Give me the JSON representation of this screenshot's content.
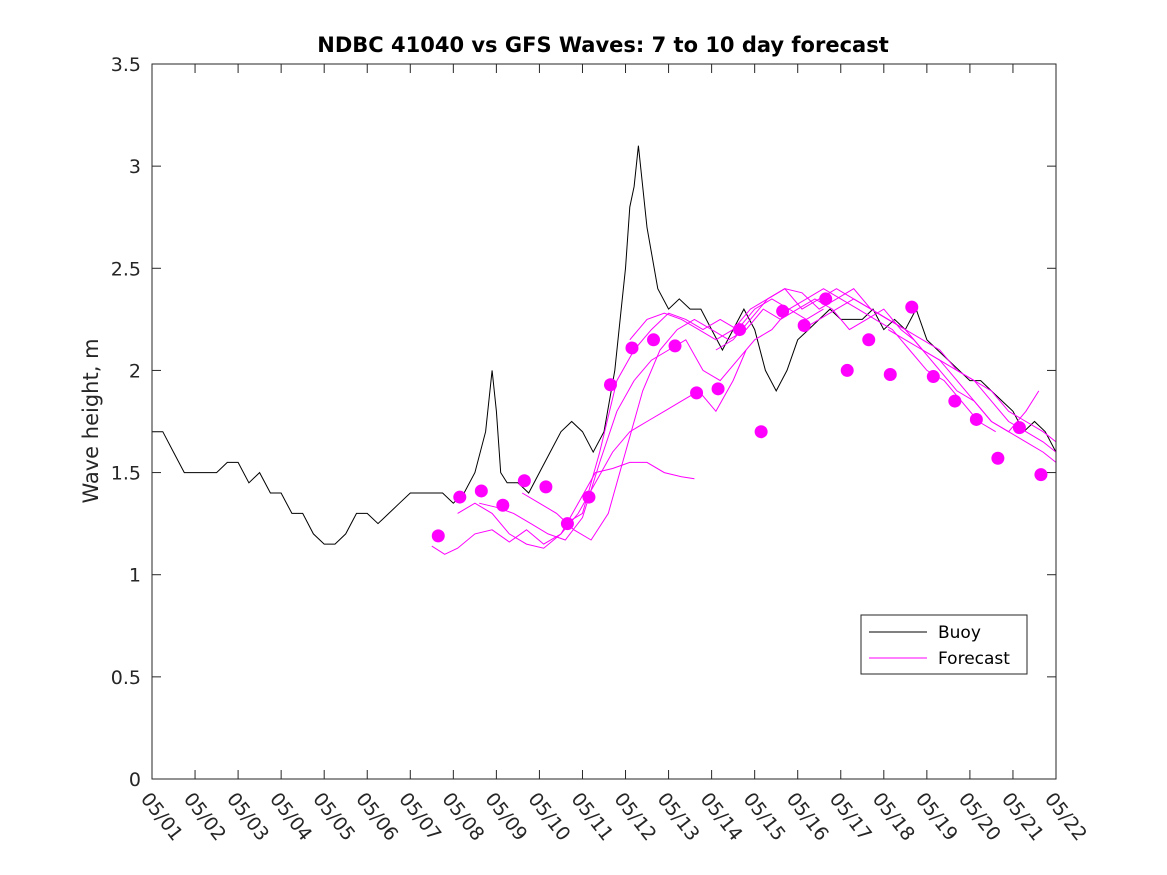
{
  "chart_data": {
    "type": "line",
    "title": "NDBC 41040 vs GFS Waves: 7 to 10 day forecast",
    "xlabel": "",
    "ylabel": "Wave height, m",
    "x_unit": "date (May)",
    "xlim": [
      "05/01",
      "05/22"
    ],
    "ylim": [
      0,
      3.5
    ],
    "yticks": [
      "0",
      "0.5",
      "1",
      "1.5",
      "2",
      "2.5",
      "3",
      "3.5"
    ],
    "xticks": [
      "05/01",
      "05/02",
      "05/03",
      "05/04",
      "05/05",
      "05/06",
      "05/07",
      "05/08",
      "05/09",
      "05/10",
      "05/11",
      "05/12",
      "05/13",
      "05/14",
      "05/15",
      "05/16",
      "05/17",
      "05/18",
      "05/19",
      "05/20",
      "05/21",
      "05/22"
    ],
    "grid": false,
    "legend": {
      "position": "lower-right",
      "entries": [
        "Buoy",
        "Forecast"
      ]
    },
    "colors": {
      "buoy": "#000000",
      "forecast": "#ff00ff"
    },
    "series": [
      {
        "name": "Buoy",
        "style": "line",
        "x_day": [
          1.0,
          1.25,
          1.5,
          1.75,
          2.0,
          2.25,
          2.5,
          2.75,
          3.0,
          3.25,
          3.5,
          3.75,
          4.0,
          4.25,
          4.5,
          4.75,
          5.0,
          5.25,
          5.5,
          5.75,
          6.0,
          6.25,
          6.5,
          6.75,
          7.0,
          7.25,
          7.5,
          7.75,
          8.0,
          8.25,
          8.5,
          8.75,
          8.9,
          9.0,
          9.1,
          9.25,
          9.5,
          9.75,
          10.0,
          10.25,
          10.5,
          10.75,
          11.0,
          11.25,
          11.5,
          11.75,
          11.9,
          12.0,
          12.1,
          12.2,
          12.3,
          12.5,
          12.75,
          13.0,
          13.25,
          13.5,
          13.75,
          14.0,
          14.25,
          14.5,
          14.75,
          15.0,
          15.25,
          15.5,
          15.75,
          16.0,
          16.25,
          16.5,
          16.75,
          17.0,
          17.25,
          17.5,
          17.75,
          18.0,
          18.25,
          18.5,
          18.75,
          19.0,
          19.25,
          19.5,
          19.75,
          20.0,
          20.25,
          20.5,
          20.75,
          21.0,
          21.25,
          21.5,
          21.75,
          22.0
        ],
        "values": [
          1.7,
          1.7,
          1.6,
          1.5,
          1.5,
          1.5,
          1.5,
          1.55,
          1.55,
          1.45,
          1.5,
          1.4,
          1.4,
          1.3,
          1.3,
          1.2,
          1.15,
          1.15,
          1.2,
          1.3,
          1.3,
          1.25,
          1.3,
          1.35,
          1.4,
          1.4,
          1.4,
          1.4,
          1.35,
          1.4,
          1.5,
          1.7,
          2.0,
          1.8,
          1.5,
          1.45,
          1.45,
          1.4,
          1.5,
          1.6,
          1.7,
          1.75,
          1.7,
          1.6,
          1.7,
          2.0,
          2.3,
          2.5,
          2.8,
          2.9,
          3.1,
          2.7,
          2.4,
          2.3,
          2.35,
          2.3,
          2.3,
          2.2,
          2.1,
          2.2,
          2.3,
          2.2,
          2.0,
          1.9,
          2.0,
          2.15,
          2.2,
          2.25,
          2.3,
          2.25,
          2.25,
          2.25,
          2.3,
          2.2,
          2.25,
          2.2,
          2.3,
          2.15,
          2.1,
          2.05,
          2.0,
          1.95,
          1.95,
          1.9,
          1.85,
          1.8,
          1.7,
          1.75,
          1.7,
          1.6
        ]
      },
      {
        "name": "Forecast",
        "style": "line",
        "x_day": [
          7.5,
          7.8,
          8.1,
          8.5,
          8.9,
          9.3,
          9.7,
          10.1,
          10.5,
          10.9,
          11.3,
          11.7,
          12.1,
          12.5,
          12.9,
          13.3,
          13.6
        ],
        "values": [
          1.14,
          1.1,
          1.13,
          1.2,
          1.22,
          1.16,
          1.22,
          1.15,
          1.2,
          1.35,
          1.5,
          1.52,
          1.55,
          1.55,
          1.5,
          1.48,
          1.47
        ]
      },
      {
        "name": "Forecast",
        "style": "line",
        "x_day": [
          8.1,
          8.5,
          8.9,
          9.3,
          9.7,
          10.1,
          10.5,
          10.9,
          11.3,
          11.7,
          12.1,
          12.5,
          12.9,
          13.3,
          13.7,
          14.1,
          14.5,
          14.8
        ],
        "values": [
          1.3,
          1.35,
          1.3,
          1.2,
          1.15,
          1.13,
          1.2,
          1.3,
          1.45,
          1.6,
          1.7,
          1.75,
          1.8,
          1.85,
          1.9,
          1.8,
          1.95,
          2.1
        ]
      },
      {
        "name": "Forecast",
        "style": "line",
        "x_day": [
          8.6,
          9.0,
          9.4,
          9.8,
          10.2,
          10.6,
          11.0,
          11.4,
          11.8,
          12.2,
          12.6,
          13.0,
          13.4,
          13.8,
          14.2,
          14.6,
          15.0,
          15.4,
          15.8,
          16.2,
          16.6
        ],
        "values": [
          1.35,
          1.33,
          1.3,
          1.25,
          1.2,
          1.17,
          1.28,
          1.55,
          1.8,
          1.95,
          2.05,
          2.1,
          2.15,
          2.0,
          1.95,
          2.05,
          2.15,
          2.2,
          2.3,
          2.25,
          2.3
        ]
      },
      {
        "name": "Forecast",
        "style": "line",
        "x_day": [
          9.6,
          10.0,
          10.4,
          10.8,
          11.2,
          11.6,
          12.0,
          12.4,
          12.8,
          13.2,
          13.6,
          14.0,
          14.4,
          14.8,
          15.2,
          15.6,
          16.0,
          16.4,
          16.8,
          17.2,
          17.6,
          18.0,
          18.4,
          18.7
        ],
        "values": [
          1.4,
          1.35,
          1.3,
          1.22,
          1.17,
          1.3,
          1.6,
          1.9,
          2.1,
          2.2,
          2.25,
          2.2,
          2.15,
          2.2,
          2.3,
          2.25,
          2.3,
          2.35,
          2.3,
          2.2,
          2.25,
          2.3,
          2.2,
          2.15
        ]
      },
      {
        "name": "Forecast",
        "style": "line",
        "x_day": [
          10.6,
          11.0,
          11.4,
          11.8,
          12.2,
          12.6,
          13.0,
          13.4,
          13.8,
          14.2,
          14.6,
          15.0,
          15.4,
          15.8,
          16.2,
          16.6,
          17.0,
          17.4,
          17.8,
          18.2,
          18.6,
          19.0,
          19.4,
          19.8,
          20.2,
          20.6
        ],
        "values": [
          1.25,
          1.3,
          1.6,
          1.95,
          2.1,
          2.2,
          2.28,
          2.25,
          2.2,
          2.25,
          2.2,
          2.3,
          2.35,
          2.3,
          2.35,
          2.4,
          2.35,
          2.3,
          2.25,
          2.2,
          2.1,
          2.0,
          1.95,
          1.85,
          1.75,
          1.7
        ]
      },
      {
        "name": "Forecast",
        "style": "line",
        "x_day": [
          12.1,
          12.5,
          12.9,
          13.3,
          13.7,
          14.1,
          14.5,
          14.9,
          15.3,
          15.7,
          16.1,
          16.5,
          16.9,
          17.3,
          17.7,
          18.1,
          18.5,
          18.9,
          19.3,
          19.7,
          20.1,
          20.5,
          20.9,
          21.3,
          21.6
        ],
        "values": [
          2.15,
          2.25,
          2.28,
          2.25,
          2.2,
          2.15,
          2.2,
          2.3,
          2.35,
          2.4,
          2.38,
          2.3,
          2.35,
          2.4,
          2.3,
          2.25,
          2.2,
          2.1,
          2.0,
          1.9,
          1.85,
          1.75,
          1.7,
          1.8,
          1.9
        ]
      },
      {
        "name": "Forecast",
        "style": "line",
        "x_day": [
          14.1,
          14.5,
          14.9,
          15.3,
          15.7,
          16.1,
          16.5,
          16.9,
          17.3,
          17.7,
          18.1,
          18.5,
          18.9,
          19.3,
          19.7,
          20.1,
          20.5,
          20.9,
          21.3,
          21.7,
          22.0
        ],
        "values": [
          2.1,
          2.15,
          2.25,
          2.35,
          2.4,
          2.3,
          2.35,
          2.4,
          2.35,
          2.3,
          2.25,
          2.2,
          2.1,
          2.05,
          1.95,
          1.85,
          1.75,
          1.7,
          1.65,
          1.6,
          1.55
        ]
      },
      {
        "name": "Forecast",
        "style": "line",
        "x_day": [
          16.1,
          16.5,
          16.9,
          17.3,
          17.7,
          18.1,
          18.5,
          18.9,
          19.3,
          19.7,
          20.1,
          20.5,
          20.9,
          21.3,
          21.7,
          22.0
        ],
        "values": [
          2.2,
          2.25,
          2.3,
          2.35,
          2.3,
          2.25,
          2.2,
          2.15,
          2.1,
          2.0,
          1.95,
          1.9,
          1.8,
          1.75,
          1.7,
          1.65
        ]
      },
      {
        "name": "Forecast",
        "style": "line",
        "x_day": [
          18.1,
          18.5,
          18.9,
          19.3,
          19.7,
          20.1,
          20.5,
          20.9,
          21.3,
          21.7,
          22.0
        ],
        "values": [
          2.2,
          2.15,
          2.1,
          2.05,
          2.0,
          1.95,
          1.85,
          1.75,
          1.7,
          1.65,
          1.6
        ]
      },
      {
        "name": "Forecast",
        "style": "markers",
        "x_day": [
          7.65,
          8.15,
          8.65,
          9.15,
          9.65,
          10.15,
          10.65,
          11.15,
          11.65,
          12.15,
          12.65,
          13.15,
          13.65,
          14.15,
          14.65,
          15.15,
          15.65,
          16.15,
          16.65,
          17.15,
          17.65,
          18.15,
          18.65,
          19.15,
          19.65,
          20.15,
          20.65,
          21.15,
          21.65
        ],
        "values": [
          1.19,
          1.38,
          1.41,
          1.34,
          1.46,
          1.43,
          1.25,
          1.38,
          1.93,
          2.11,
          2.15,
          2.12,
          1.89,
          1.91,
          2.2,
          1.7,
          2.29,
          2.22,
          2.35,
          2.0,
          2.15,
          1.98,
          2.31,
          1.97,
          1.85,
          1.76,
          1.57,
          1.72,
          1.49
        ]
      }
    ]
  }
}
